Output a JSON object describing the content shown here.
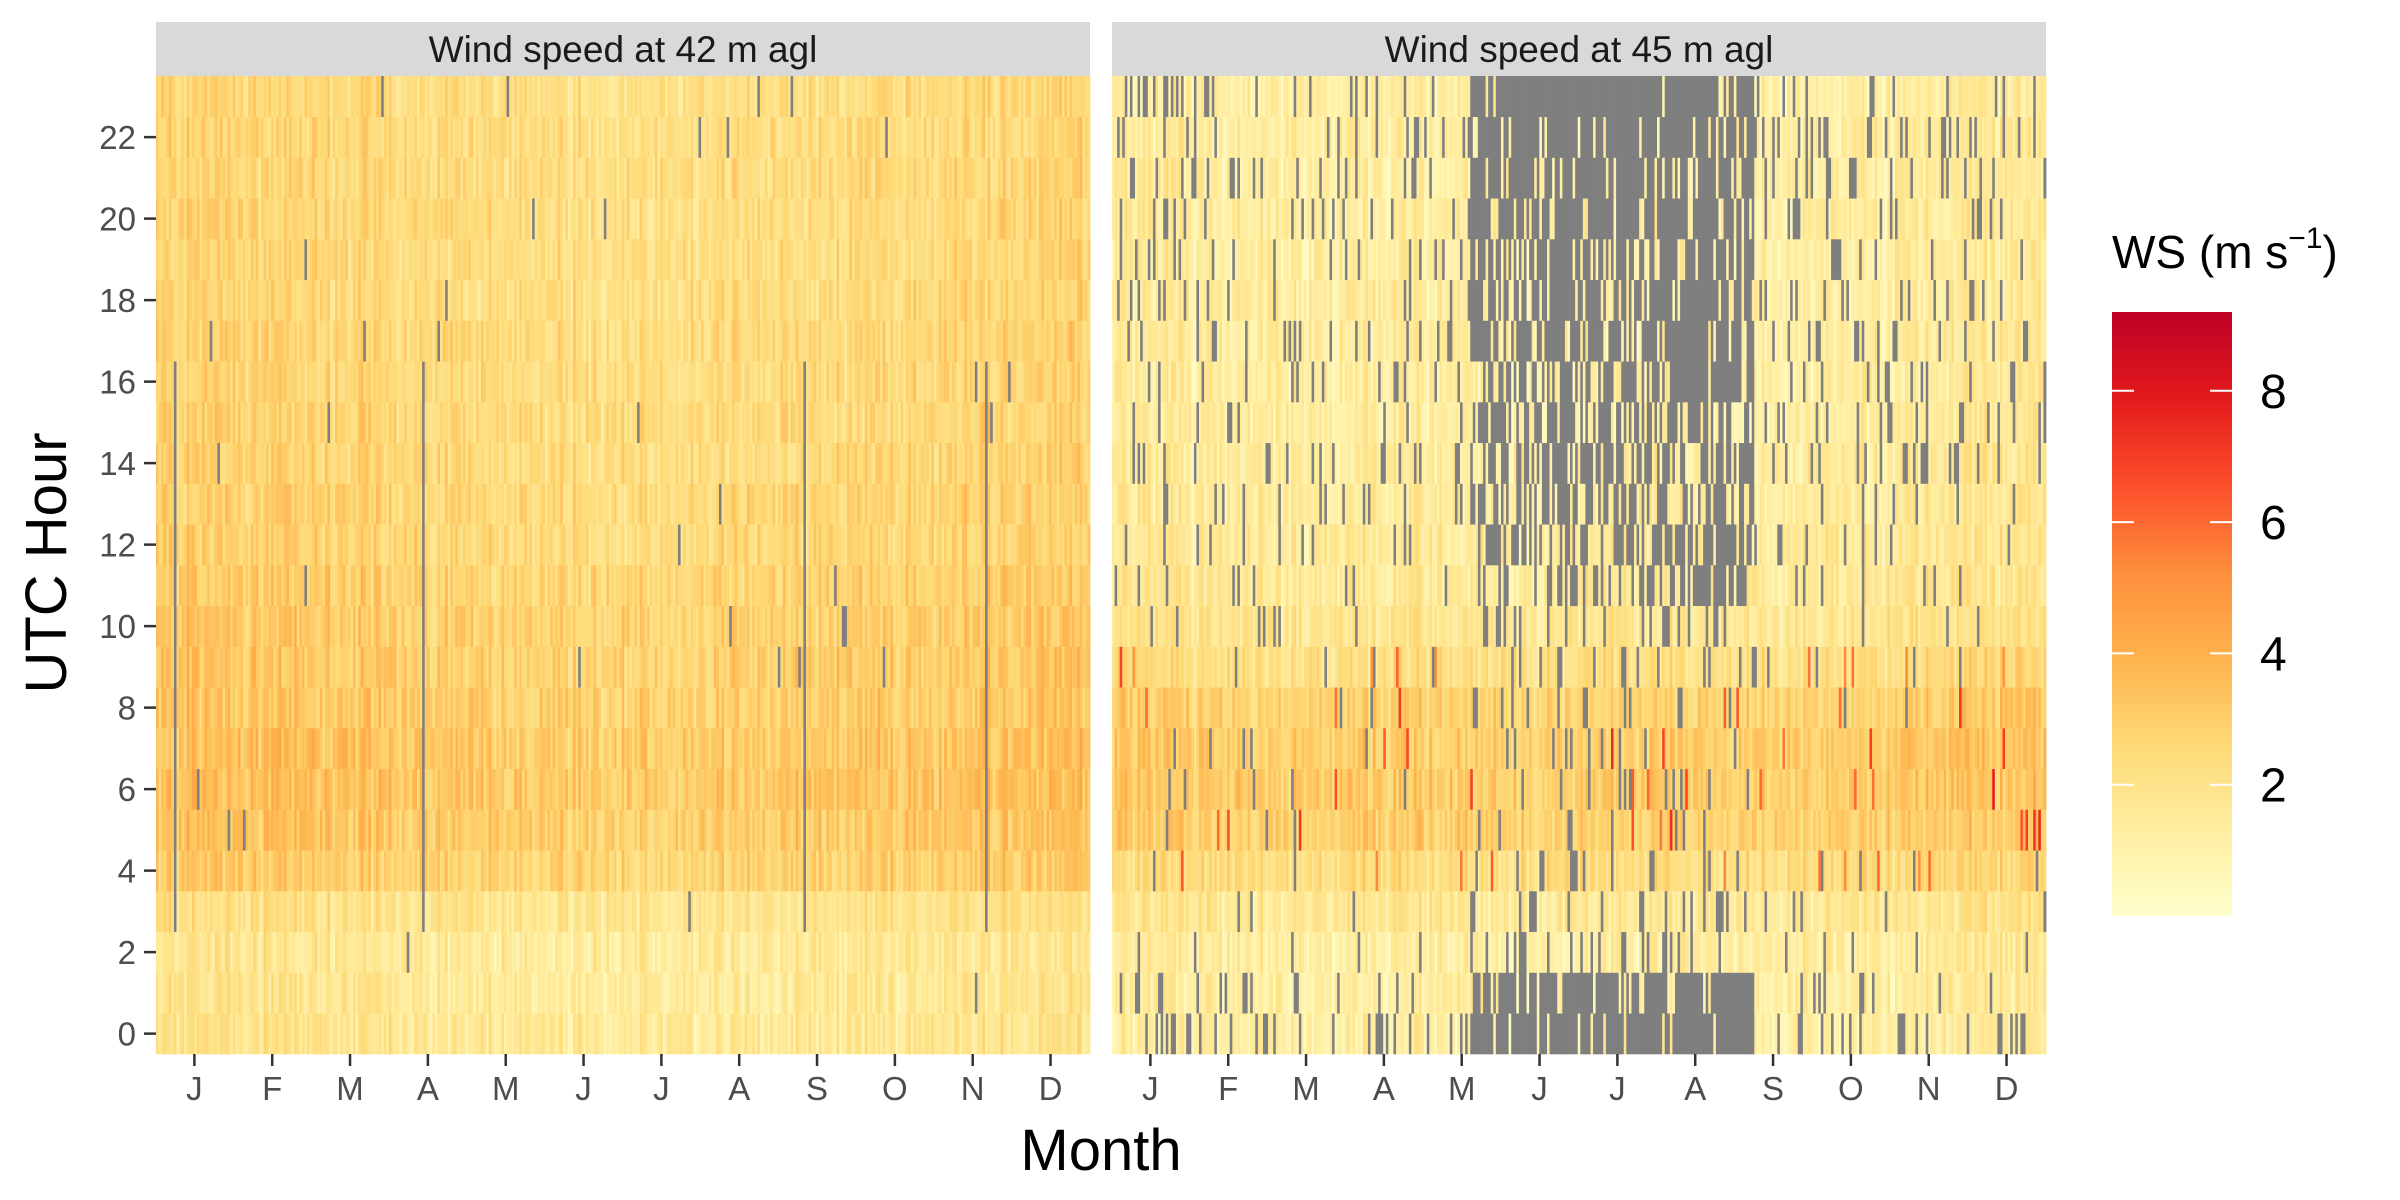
{
  "chart_data": {
    "type": "heatmap",
    "xlabel": "Month",
    "ylabel": "UTC Hour",
    "x_tick_labels": [
      "J",
      "F",
      "M",
      "A",
      "M",
      "J",
      "J",
      "A",
      "S",
      "O",
      "N",
      "D"
    ],
    "y_ticks": [
      0,
      2,
      4,
      6,
      8,
      10,
      12,
      14,
      16,
      18,
      20,
      22
    ],
    "y_tick_labels": [
      "0",
      "2",
      "4",
      "6",
      "8",
      "10",
      "12",
      "14",
      "16",
      "18",
      "20",
      "22"
    ],
    "hours": [
      0,
      1,
      2,
      3,
      4,
      5,
      6,
      7,
      8,
      9,
      10,
      11,
      12,
      13,
      14,
      15,
      16,
      17,
      18,
      19,
      20,
      21,
      22,
      23
    ],
    "days_per_year": 365,
    "missing_color": "#7f7f7f",
    "colorscale": {
      "name": "YlOrRd",
      "range": [
        0,
        9.2
      ],
      "colors": [
        "#ffffcc",
        "#ffeda0",
        "#fed976",
        "#feb24c",
        "#fd8d3c",
        "#fc4e2a",
        "#e31a1c",
        "#bd0026"
      ]
    },
    "legend": {
      "title": "WS (m s",
      "title_superscript": "−1",
      "title_close": ")",
      "ticks": [
        2,
        4,
        6,
        8
      ],
      "tick_labels": [
        "2",
        "4",
        "6",
        "8"
      ],
      "placement": "right"
    },
    "panels": [
      {
        "title": "Wind speed at 42 m agl",
        "mean_ws_by_hour": [
          1.7,
          1.6,
          1.6,
          1.9,
          2.8,
          3.1,
          3.2,
          3.2,
          3.0,
          3.0,
          2.9,
          2.8,
          2.6,
          2.6,
          2.5,
          2.5,
          2.5,
          2.5,
          2.4,
          2.4,
          2.4,
          2.4,
          2.4,
          2.3
        ],
        "seasonal_note_values": [
          0.3,
          0.2,
          0.1,
          0.0,
          -0.1,
          -0.2,
          -0.2,
          -0.1,
          0.0,
          0.1,
          0.2,
          0.3
        ],
        "missing_fraction": 0.004,
        "missing_full_column_days": [
          7,
          104,
          253,
          324
        ]
      },
      {
        "title": "Wind speed at 45 m agl",
        "mean_ws_by_hour": [
          1.2,
          1.2,
          1.3,
          1.6,
          2.3,
          2.9,
          3.0,
          3.0,
          2.8,
          2.2,
          1.8,
          1.6,
          1.5,
          1.4,
          1.4,
          1.3,
          1.3,
          1.3,
          1.3,
          1.3,
          1.3,
          1.3,
          1.3,
          1.2
        ],
        "seasonal_note_values": [
          0.1,
          0.0,
          0.0,
          0.1,
          0.0,
          -0.1,
          -0.1,
          -0.1,
          0.0,
          0.0,
          0.2,
          0.3
        ],
        "missing_fraction_by_hour": [
          0.35,
          0.25,
          0.08,
          0.05,
          0.04,
          0.03,
          0.03,
          0.03,
          0.03,
          0.05,
          0.08,
          0.14,
          0.16,
          0.17,
          0.18,
          0.19,
          0.2,
          0.22,
          0.23,
          0.24,
          0.25,
          0.26,
          0.27,
          0.27
        ],
        "missing_peak_days": [
          140,
          250
        ]
      }
    ]
  }
}
